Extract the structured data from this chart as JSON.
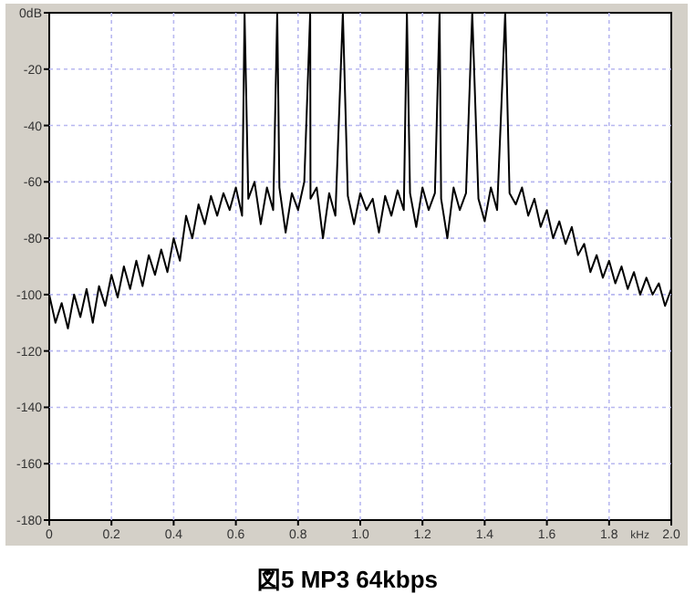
{
  "chart_data": {
    "type": "line",
    "title": "図5 MP3 64kbps",
    "xlabel": "kHz",
    "x": [
      0,
      0.02,
      0.04,
      0.06,
      0.08,
      0.1,
      0.12,
      0.14,
      0.16,
      0.18,
      0.2,
      0.22,
      0.24,
      0.26,
      0.28,
      0.3,
      0.32,
      0.34,
      0.36,
      0.38,
      0.4,
      0.42,
      0.44,
      0.46,
      0.48,
      0.5,
      0.52,
      0.54,
      0.56,
      0.58,
      0.6,
      0.62,
      0.628,
      0.64,
      0.66,
      0.68,
      0.7,
      0.72,
      0.733,
      0.74,
      0.76,
      0.78,
      0.8,
      0.82,
      0.839,
      0.84,
      0.86,
      0.88,
      0.9,
      0.92,
      0.944,
      0.96,
      0.98,
      1.0,
      1.02,
      1.04,
      1.06,
      1.08,
      1.1,
      1.12,
      1.14,
      1.15,
      1.16,
      1.18,
      1.2,
      1.22,
      1.24,
      1.255,
      1.26,
      1.28,
      1.3,
      1.32,
      1.34,
      1.36,
      1.38,
      1.4,
      1.42,
      1.44,
      1.466,
      1.48,
      1.5,
      1.52,
      1.54,
      1.56,
      1.58,
      1.6,
      1.62,
      1.64,
      1.66,
      1.68,
      1.7,
      1.72,
      1.74,
      1.76,
      1.78,
      1.8,
      1.82,
      1.84,
      1.86,
      1.88,
      1.9,
      1.92,
      1.94,
      1.96,
      1.98,
      2.0
    ],
    "series": [
      {
        "color": "#000000",
        "values": [
          -100,
          -110,
          -103,
          -112,
          -100,
          -108,
          -98,
          -110,
          -97,
          -104,
          -93,
          -101,
          -90,
          -98,
          -88,
          -97,
          -86,
          -93,
          -84,
          -92,
          -80,
          -88,
          -72,
          -80,
          -68,
          -75,
          -65,
          -72,
          -64,
          -70,
          -62,
          -72,
          0,
          -66,
          -60,
          -75,
          -62,
          -70,
          0,
          -62,
          -78,
          -64,
          -70,
          -60,
          0,
          -66,
          -62,
          -80,
          -64,
          -72,
          0,
          -65,
          -75,
          -64,
          -70,
          -66,
          -78,
          -65,
          -72,
          -63,
          -70,
          0,
          -64,
          -76,
          -62,
          -70,
          -64,
          0,
          -66,
          -80,
          -62,
          -70,
          -64,
          0,
          -66,
          -74,
          -62,
          -70,
          0,
          -64,
          -68,
          -62,
          -72,
          -66,
          -76,
          -70,
          -80,
          -74,
          -82,
          -76,
          -86,
          -82,
          -92,
          -86,
          -94,
          -88,
          -96,
          -90,
          -98,
          -92,
          -100,
          -94,
          -100,
          -96,
          -104,
          -98
        ]
      }
    ],
    "xlim": [
      0,
      2.0
    ],
    "ylim": [
      -180,
      0
    ],
    "xticks": [
      0,
      0.2,
      0.4,
      0.6,
      0.8,
      {
        "value": 1,
        "label": "1.0"
      },
      1.2,
      1.4,
      1.6,
      1.8,
      {
        "value": 2,
        "label": "2.0"
      }
    ],
    "yticks": [
      -180,
      -160,
      -140,
      -120,
      -100,
      -80,
      -60,
      -40,
      -20,
      {
        "value": 0,
        "label": "0dB"
      }
    ],
    "grid": true
  }
}
